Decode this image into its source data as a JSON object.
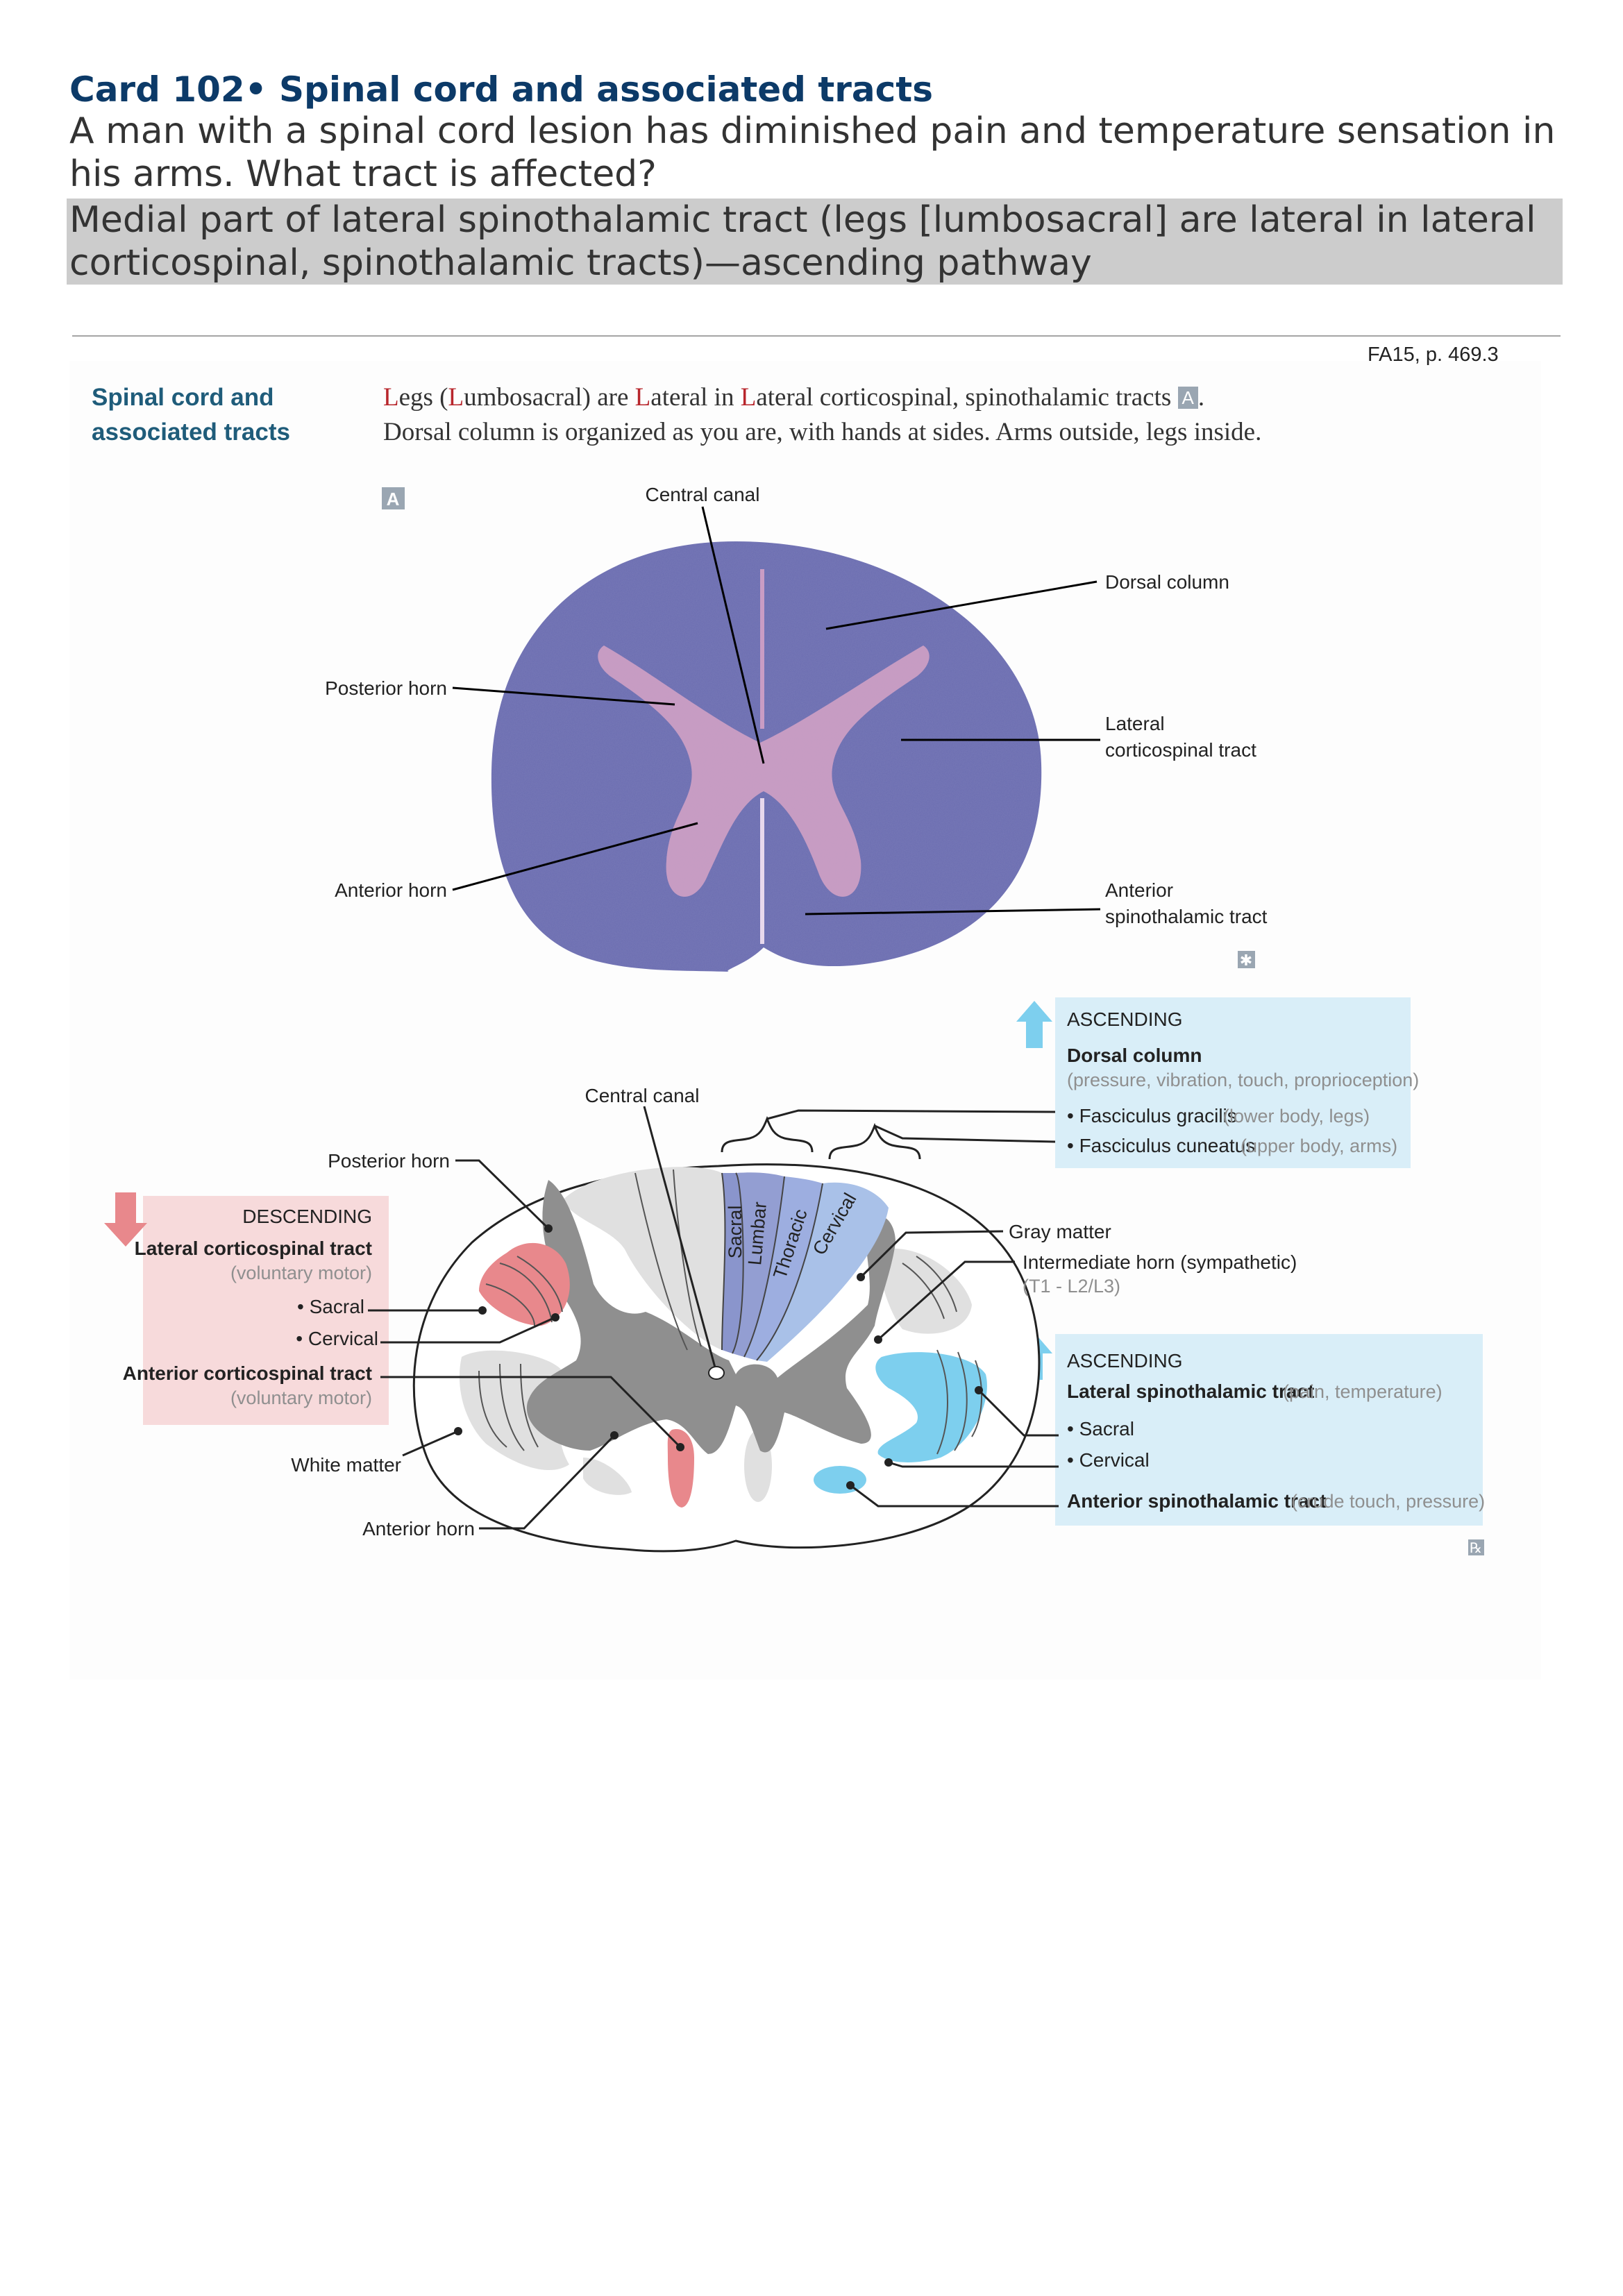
{
  "card": {
    "title": "Card 102• Spinal cord and associated tracts",
    "question": "A man with a spinal cord lesion has diminished pain and temperature sensation in his arms. What tract is affected?",
    "answer": "Medial part of lateral spinothalamic tract (legs [lumbosacral] are lateral in lateral corticospinal, spinothalamic tracts)—ascending pathway"
  },
  "reference": "FA15, p. 469.3",
  "section": {
    "title_line1": "Spinal cord and",
    "title_line2": "associated tracts",
    "mnemonic": {
      "l1": "L",
      "w1": "egs (",
      "l2": "L",
      "w2": "umbosacral) are ",
      "l3": "L",
      "w3": "ateral in ",
      "l4": "L",
      "w4": "ateral corticospinal, spinothalamic tracts ",
      "box": "A",
      "end": ".",
      "line2": "Dorsal column is organized as you are, with hands at sides. Arms outside, legs inside."
    }
  },
  "histology": {
    "marker": "A",
    "labels": {
      "central_canal": "Central canal",
      "dorsal_column": "Dorsal column",
      "posterior_horn": "Posterior horn",
      "lateral_cst_1": "Lateral",
      "lateral_cst_2": "corticospinal tract",
      "anterior_horn": "Anterior horn",
      "anterior_stt_1": "Anterior",
      "anterior_stt_2": "spinothalamic tract"
    },
    "star": "✱"
  },
  "diagram": {
    "colors": {
      "descending": "#e8888c",
      "descending_bg": "#f7dadb",
      "ascending": "#7dcfee",
      "ascending_bg": "#d9eef8",
      "gray": "#8f8f8f",
      "dorsal_dark": "#8a95cc",
      "dorsal_light": "#a9c1e8"
    },
    "descending": {
      "header": "DESCENDING",
      "lateral": "Lateral corticospinal tract",
      "lateral_note": "(voluntary motor)",
      "sacral": "• Sacral",
      "cervical": "• Cervical",
      "anterior": "Anterior corticospinal tract",
      "anterior_note": "(voluntary motor)"
    },
    "ascending_dorsal": {
      "header": "ASCENDING",
      "title": "Dorsal column",
      "note": "(pressure, vibration, touch, proprioception)",
      "gracilis": "• Fasciculus gracilis",
      "gracilis_note": "(lower body, legs)",
      "cuneatus": "• Fasciculus cuneatus",
      "cuneatus_note": "(upper body, arms)"
    },
    "ascending_lateral": {
      "header": "ASCENDING",
      "title": "Lateral spinothalamic tract",
      "title_note": "(pain, temperature)",
      "sacral": "• Sacral",
      "cervical": "• Cervical",
      "anterior": "Anterior spinothalamic tract",
      "anterior_note": "(crude touch, pressure)"
    },
    "labels": {
      "central_canal": "Central canal",
      "posterior_horn": "Posterior horn",
      "gray_matter": "Gray matter",
      "intermediate_horn": "Intermediate horn (sympathetic)",
      "intermediate_note": "(T1 - L2/L3)",
      "white_matter": "White matter",
      "anterior_horn": "Anterior horn"
    },
    "segments": [
      "Sacral",
      "Lumbar",
      "Thoracic",
      "Cervical"
    ],
    "rx": "℞"
  }
}
